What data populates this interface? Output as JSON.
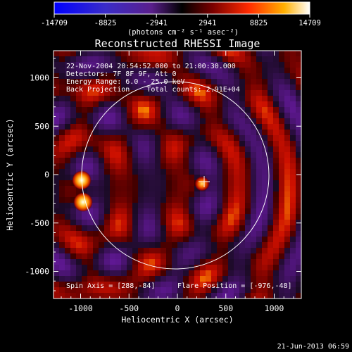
{
  "colorbar": {
    "tick_labels": [
      "-14709",
      "-8825",
      "-2941",
      "2941",
      "8825",
      "14709"
    ],
    "unit_label": "(photons cm⁻² s⁻¹ asec⁻²)"
  },
  "plot": {
    "title": "Reconstructed RHESSI Image",
    "xlabel": "Heliocentric X (arcsec)",
    "ylabel": "Heliocentric Y (arcsec)",
    "info_lines": [
      "22-Nov-2004 20:54:52.000 to 21:00:30.000",
      "Detectors: 7F 8F 9F, Att 0",
      "Energy Range: 6.0 - 25.0 keV",
      "Back Projection    Total counts: 2.91E+04"
    ],
    "spin_axis": "Spin Axis = [288,-84]",
    "flare_position": "Flare Position = [-976,-48]",
    "x_ticks": [
      "-1000",
      "-500",
      "0",
      "500",
      "1000"
    ],
    "y_ticks": [
      "1000",
      "500",
      "0",
      "-500",
      "-1000"
    ]
  },
  "footer": {
    "timestamp": "21-Jun-2013 06:59"
  },
  "chart_data": {
    "type": "heatmap",
    "title": "Reconstructed RHESSI Image",
    "xlabel": "Heliocentric X (arcsec)",
    "ylabel": "Heliocentric Y (arcsec)",
    "xlim": [
      -1280,
      1280
    ],
    "ylim": [
      -1280,
      1280
    ],
    "colorbar_range": [
      -14709,
      14709
    ],
    "colorbar_ticks": [
      -14709,
      -8825,
      -2941,
      2941,
      8825,
      14709
    ],
    "bright_sources": [
      {
        "x": -976,
        "y": 0,
        "level": "high"
      },
      {
        "x": -976,
        "y": -270,
        "level": "high"
      },
      {
        "x": 270,
        "y": -90,
        "level": "medium-high"
      }
    ],
    "solar_limb_radius_arcsec": 970,
    "marker_cross": {
      "x": 288,
      "y": -84
    }
  }
}
